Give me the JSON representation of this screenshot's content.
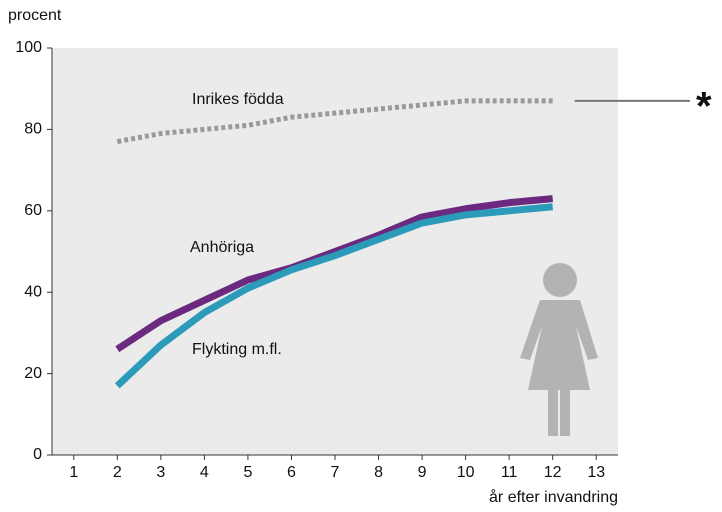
{
  "chart_data": {
    "type": "line",
    "y_label": "procent",
    "x_label": "år efter invandring",
    "note_mark": "*",
    "x": [
      2,
      3,
      4,
      5,
      6,
      7,
      8,
      9,
      10,
      11,
      12
    ],
    "series": [
      {
        "name": "Inrikes födda",
        "color": "#9a9a9a",
        "dashed": true,
        "values": [
          77,
          79,
          80,
          81,
          83,
          84,
          85,
          86,
          87,
          87,
          87
        ]
      },
      {
        "name": "Anhöriga",
        "color": "#6b2a80",
        "values": [
          26,
          33,
          38,
          43,
          46,
          50,
          54,
          58.5,
          60.5,
          62,
          63
        ]
      },
      {
        "name": "Flykting m.fl.",
        "color": "#2b9bb9",
        "values": [
          17,
          27,
          35,
          41,
          45.5,
          49,
          53,
          57,
          59,
          60,
          61
        ]
      }
    ],
    "xlim": [
      0.5,
      13.5
    ],
    "xticks": [
      1,
      2,
      3,
      4,
      5,
      6,
      7,
      8,
      9,
      10,
      11,
      12,
      13
    ],
    "ylim": [
      0,
      100
    ],
    "yticks": [
      0,
      20,
      40,
      60,
      80,
      100
    ]
  }
}
